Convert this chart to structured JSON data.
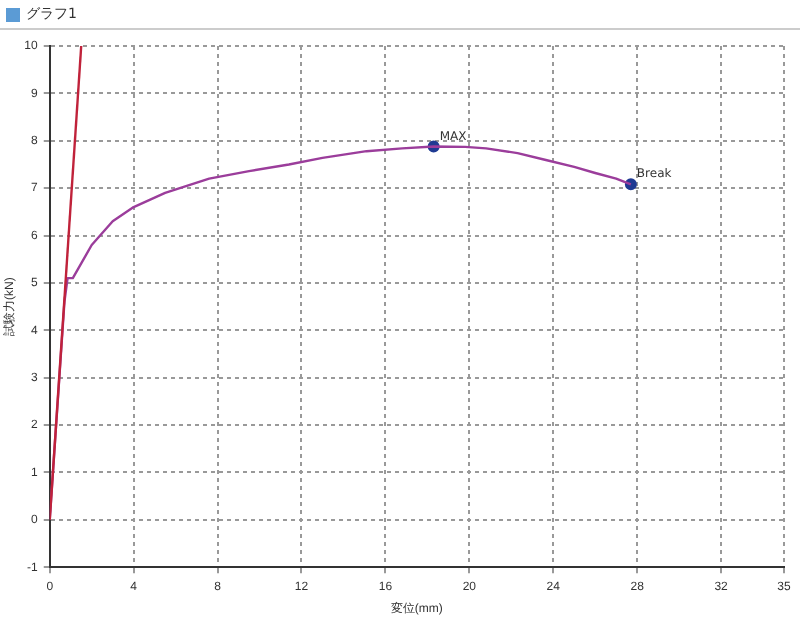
{
  "chart_data": {
    "type": "line",
    "title": "グラフ1",
    "xlabel": "変位(mm)",
    "ylabel": "試験力(kN)",
    "xlim": [
      0,
      35
    ],
    "xticks": [
      0,
      4,
      8,
      12,
      16,
      20,
      24,
      28,
      32,
      35
    ],
    "ylim": [
      -1,
      10
    ],
    "yticks": [
      -1,
      0,
      1,
      2,
      3,
      4,
      5,
      6,
      7,
      8,
      9,
      10
    ],
    "grid": true,
    "legend": false,
    "line_style": "solid",
    "series": [
      {
        "color": "#c0223a",
        "x": [
          0,
          1.5
        ],
        "values": [
          0,
          10
        ]
      },
      {
        "color": "#9b3d9b",
        "x": [
          0,
          0.7,
          0.85,
          1.1,
          2,
          3,
          4,
          5.5,
          7.6,
          9.5,
          11.4,
          13,
          15.1,
          16.8,
          18.3,
          19.8,
          20.8,
          22.3,
          23.6,
          25,
          26,
          27,
          27.7
        ],
        "values": [
          0,
          4.6,
          5.1,
          5.1,
          5.8,
          6.3,
          6.6,
          6.9,
          7.2,
          7.36,
          7.5,
          7.64,
          7.78,
          7.84,
          7.88,
          7.87,
          7.84,
          7.74,
          7.6,
          7.45,
          7.32,
          7.2,
          7.08
        ]
      },
      {
        "type": "scatter",
        "marker": "circle",
        "color": "#1f3a93",
        "x": [
          18.3,
          27.7
        ],
        "values": [
          7.88,
          7.08
        ]
      }
    ],
    "annotations": [
      {
        "text": "MAX",
        "x": 18.3,
        "y": 7.88
      },
      {
        "text": "Break",
        "x": 27.7,
        "y": 7.08
      }
    ]
  }
}
